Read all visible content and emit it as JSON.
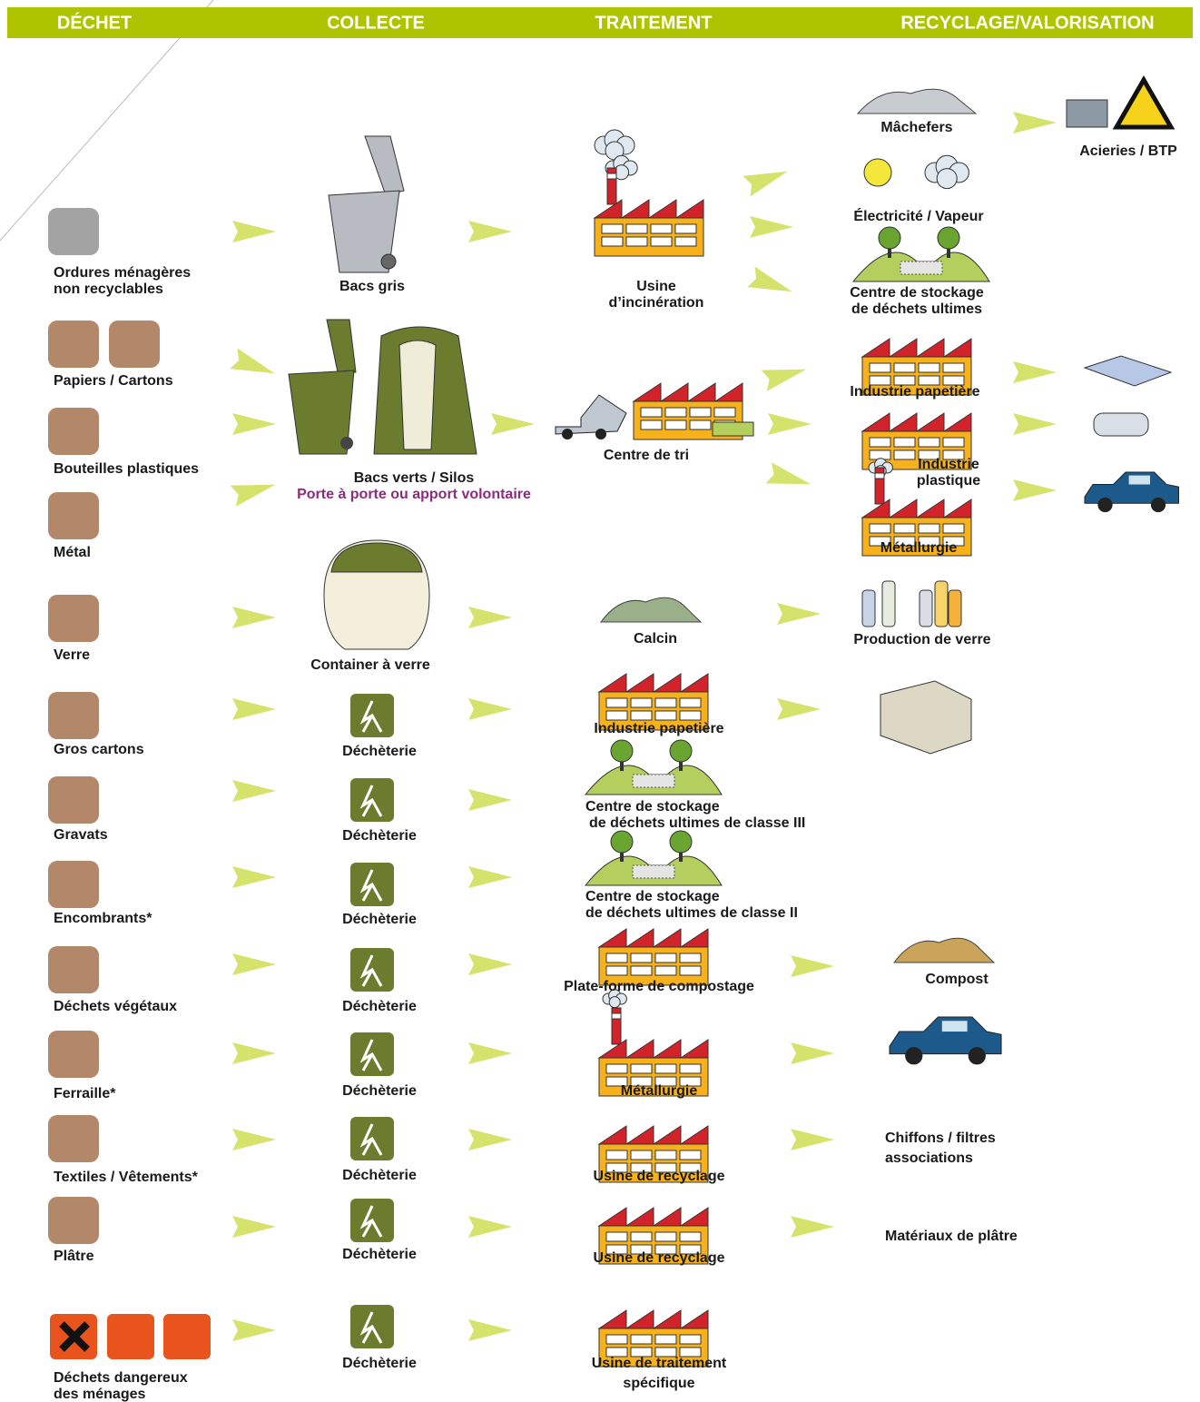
{
  "header": {
    "columns": [
      "DÉCHET",
      "COLLECTE",
      "TRAITEMENT",
      "RECYCLAGE/VALORISATION"
    ]
  },
  "waste": [
    [
      "Ordures ménagères",
      "non recyclables"
    ],
    [
      "Papiers / Cartons"
    ],
    [
      "Bouteilles plastiques"
    ],
    [
      "Métal"
    ],
    [
      "Verre"
    ],
    [
      "Gros cartons"
    ],
    [
      "Gravats"
    ],
    [
      "Encombrants*"
    ],
    [
      "Déchets végétaux"
    ],
    [
      "Ferraille*"
    ],
    [
      "Textiles / Vêtements*"
    ],
    [
      "Plâtre"
    ],
    [
      "Déchets dangereux",
      "des ménages"
    ]
  ],
  "collection": [
    [
      "Bacs gris"
    ],
    [
      "Bacs verts / Silos",
      "Porte à porte ou apport volontaire"
    ],
    [
      "Container à verre"
    ],
    [
      "Déchèterie"
    ],
    [
      "Déchèterie"
    ],
    [
      "Déchèterie"
    ],
    [
      "Déchèterie"
    ],
    [
      "Déchèterie"
    ],
    [
      "Déchèterie"
    ],
    [
      "Déchèterie"
    ],
    [
      "Déchèterie"
    ]
  ],
  "treatment": [
    [
      "Usine",
      "d’incinération"
    ],
    [
      "Centre de tri"
    ],
    [
      "Calcin"
    ],
    [
      "Industrie papetière"
    ],
    [
      "Centre de stockage",
      "de déchets ultimes de classe III"
    ],
    [
      "Centre de stockage",
      "de déchets ultimes de classe II"
    ],
    [
      "Plate-forme de compostage"
    ],
    [
      "Métallurgie"
    ],
    [
      "Usine de recyclage"
    ],
    [
      "Usine de recyclage"
    ],
    [
      "Usine de traitement",
      "spécifique"
    ]
  ],
  "recycling": [
    [
      "Mâchefers"
    ],
    [
      "Acieries / BTP"
    ],
    [
      "Électricité / Vapeur"
    ],
    [
      "Centre de stockage",
      "de déchets ultimes"
    ],
    [
      "Industrie papetière"
    ],
    [
      "Industrie",
      "plastique"
    ],
    [
      "Métallurgie"
    ],
    [
      "Production de verre"
    ],
    [
      "Compost"
    ],
    [
      "Chiffons / filtres",
      "associations"
    ],
    [
      "Matériaux de plâtre"
    ]
  ]
}
